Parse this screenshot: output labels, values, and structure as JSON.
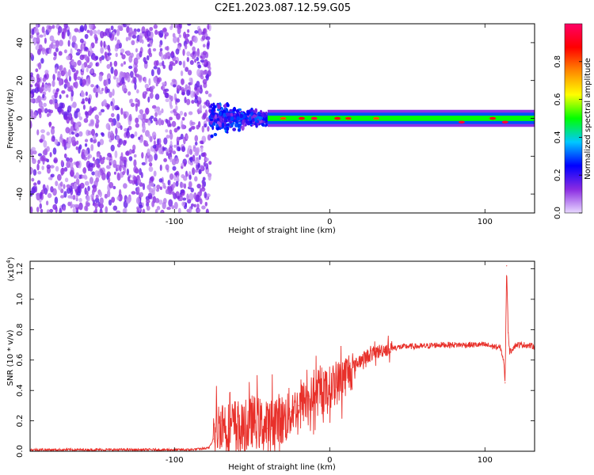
{
  "figure": {
    "title": "C2E1.2023.087.12.59.G05"
  },
  "colorbar": {
    "label": "Normalized spectral amplitude",
    "ticks": [
      {
        "value": 0.0,
        "label": "0.0"
      },
      {
        "value": 0.2,
        "label": "0.2"
      },
      {
        "value": 0.4,
        "label": "0.4"
      },
      {
        "value": 0.6,
        "label": "0.6"
      },
      {
        "value": 0.8,
        "label": "0.8"
      }
    ],
    "range": [
      0,
      1
    ],
    "colormap": [
      "#e8d8ff",
      "#8a2be2",
      "#0000ff",
      "#00c8ff",
      "#00ff00",
      "#ffff00",
      "#ff8800",
      "#ff0000",
      "#ff0066"
    ]
  },
  "chart_data": [
    {
      "type": "heatmap",
      "title": "",
      "xlabel": "Height of straight line (km)",
      "ylabel": "Frequency (Hz)",
      "xlim": [
        -193,
        132
      ],
      "ylim": [
        -50,
        50
      ],
      "xticks": [
        {
          "value": -100,
          "label": "-100"
        },
        {
          "value": 0,
          "label": "0"
        },
        {
          "value": 100,
          "label": "100"
        }
      ],
      "yticks": [
        {
          "value": -40,
          "label": "-40"
        },
        {
          "value": -20,
          "label": "-20"
        },
        {
          "value": 0,
          "label": "0"
        },
        {
          "value": 20,
          "label": "20"
        },
        {
          "value": 40,
          "label": "40"
        }
      ],
      "regions": [
        {
          "x_range": [
            -193,
            -77
          ],
          "freq_range": [
            -50,
            50
          ],
          "amplitude": 0.12,
          "description": "broadband noise"
        },
        {
          "x_range": [
            -77,
            -40
          ],
          "freq_range": [
            -10,
            10
          ],
          "amplitude": 0.25,
          "description": "spreading signal"
        },
        {
          "x_range": [
            -40,
            132
          ],
          "freq_range": [
            -3,
            3
          ],
          "amplitude": 0.5,
          "description": "narrowband carrier near 0 Hz"
        }
      ],
      "peaks": [
        {
          "x": -30,
          "freq": 0,
          "amplitude": 0.8
        },
        {
          "x": -18,
          "freq": 0,
          "amplitude": 0.9
        },
        {
          "x": -10,
          "freq": 0,
          "amplitude": 0.95
        },
        {
          "x": 5,
          "freq": 0,
          "amplitude": 0.9
        },
        {
          "x": 12,
          "freq": 0,
          "amplitude": 0.85
        },
        {
          "x": 30,
          "freq": 0,
          "amplitude": 0.8
        },
        {
          "x": 85,
          "freq": -2,
          "amplitude": 0.95
        },
        {
          "x": 105,
          "freq": 0,
          "amplitude": 0.9
        },
        {
          "x": 113,
          "freq": -2,
          "amplitude": 0.95
        }
      ]
    },
    {
      "type": "line",
      "title": "",
      "xlabel": "Height of straight line (km)",
      "ylabel": "SNR (10 * v/v)",
      "yscale_label": "(x10",
      "yscale_exponent": "4",
      "yscale_close": ")",
      "xlim": [
        -193,
        132
      ],
      "ylim": [
        0,
        1.25
      ],
      "xticks": [
        {
          "value": -100,
          "label": "-100"
        },
        {
          "value": 0,
          "label": "0"
        },
        {
          "value": 100,
          "label": "100"
        }
      ],
      "yticks": [
        {
          "value": 0.0,
          "label": "0.0"
        },
        {
          "value": 0.2,
          "label": "0.2"
        },
        {
          "value": 0.4,
          "label": "0.4"
        },
        {
          "value": 0.6,
          "label": "0.6"
        },
        {
          "value": 0.8,
          "label": "0.8"
        },
        {
          "value": 1.0,
          "label": "1.0"
        },
        {
          "value": 1.2,
          "label": "1.2"
        }
      ],
      "series": [
        {
          "color": "#e8302a",
          "x": [
            -193,
            -160,
            -120,
            -90,
            -78,
            -75,
            -70,
            -65,
            -60,
            -55,
            -50,
            -45,
            -40,
            -35,
            -30,
            -25,
            -20,
            -15,
            -10,
            -5,
            0,
            5,
            10,
            15,
            20,
            25,
            30,
            35,
            40,
            50,
            60,
            70,
            80,
            90,
            100,
            105,
            110,
            112,
            113,
            114,
            115,
            116,
            118,
            120,
            125,
            132
          ],
          "y": [
            0.01,
            0.01,
            0.01,
            0.01,
            0.02,
            0.08,
            0.2,
            0.15,
            0.18,
            0.12,
            0.2,
            0.18,
            0.15,
            0.22,
            0.2,
            0.26,
            0.3,
            0.34,
            0.36,
            0.38,
            0.42,
            0.45,
            0.5,
            0.55,
            0.6,
            0.63,
            0.65,
            0.67,
            0.68,
            0.69,
            0.69,
            0.7,
            0.7,
            0.7,
            0.7,
            0.69,
            0.68,
            0.6,
            0.45,
            1.22,
            0.78,
            0.65,
            0.68,
            0.7,
            0.7,
            0.69
          ]
        }
      ],
      "noise_bursts": [
        {
          "x_range": [
            -75,
            -25
          ],
          "amplitude": 0.22
        },
        {
          "x_range": [
            -25,
            15
          ],
          "amplitude": 0.18
        },
        {
          "x_range": [
            15,
            40
          ],
          "amplitude": 0.06
        }
      ]
    }
  ]
}
